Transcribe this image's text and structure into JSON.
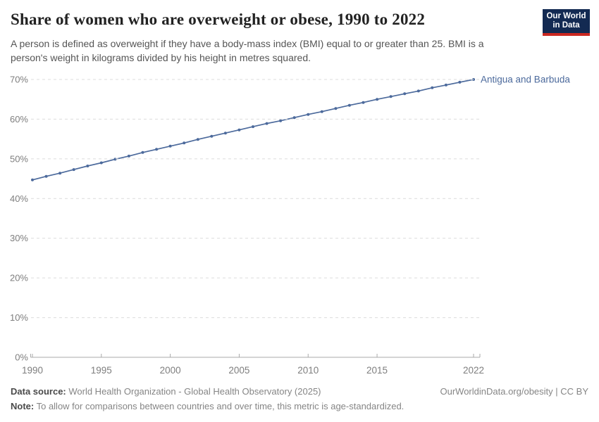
{
  "header": {
    "title": "Share of women who are overweight or obese, 1990 to 2022",
    "subtitle": "A person is defined as overweight if they have a body-mass index (BMI) equal to or greater than 25. BMI is a person's weight in kilograms divided by his height in metres squared.",
    "logo": {
      "line1": "Our World",
      "line2": "in Data"
    }
  },
  "chart_data": {
    "type": "line",
    "title": "Share of women who are overweight or obese, 1990 to 2022",
    "xlabel": "",
    "ylabel": "",
    "xlim": [
      1990,
      2022
    ],
    "ylim": [
      0,
      70
    ],
    "x_ticks": [
      1990,
      1995,
      2000,
      2005,
      2010,
      2015,
      2022
    ],
    "y_ticks": [
      0,
      10,
      20,
      30,
      40,
      50,
      60,
      70
    ],
    "y_tick_suffix": "%",
    "grid": "horizontal-dashed",
    "legend_position": "end-of-line-label",
    "series": [
      {
        "name": "Antigua and Barbuda",
        "color": "#4C6A9C",
        "years": [
          1990,
          1991,
          1992,
          1993,
          1994,
          1995,
          1996,
          1997,
          1998,
          1999,
          2000,
          2001,
          2002,
          2003,
          2004,
          2005,
          2006,
          2007,
          2008,
          2009,
          2010,
          2011,
          2012,
          2013,
          2014,
          2015,
          2016,
          2017,
          2018,
          2019,
          2020,
          2021,
          2022
        ],
        "values": [
          44.7,
          45.6,
          46.4,
          47.3,
          48.2,
          49.0,
          49.9,
          50.7,
          51.6,
          52.4,
          53.2,
          54.0,
          54.9,
          55.7,
          56.5,
          57.3,
          58.1,
          58.9,
          59.6,
          60.4,
          61.2,
          61.9,
          62.7,
          63.5,
          64.2,
          65.0,
          65.7,
          66.4,
          67.1,
          67.9,
          68.6,
          69.3,
          70.0
        ]
      }
    ]
  },
  "footer": {
    "datasource_label": "Data source:",
    "datasource_text": " World Health Organization - Global Health Observatory (2025)",
    "note_label": "Note:",
    "note_text": " To allow for comparisons between countries and over time, this metric is age-standardized.",
    "attribution": "OurWorldinData.org/obesity | CC BY"
  },
  "colors": {
    "line": "#4C6A9C",
    "entity_label": "#4C6A9C",
    "gridline": "#dcdcdc",
    "axis": "#aaaaaa",
    "tick_label": "#7e7e7e",
    "logo_navy": "#132a52",
    "logo_red": "#cb2821"
  }
}
